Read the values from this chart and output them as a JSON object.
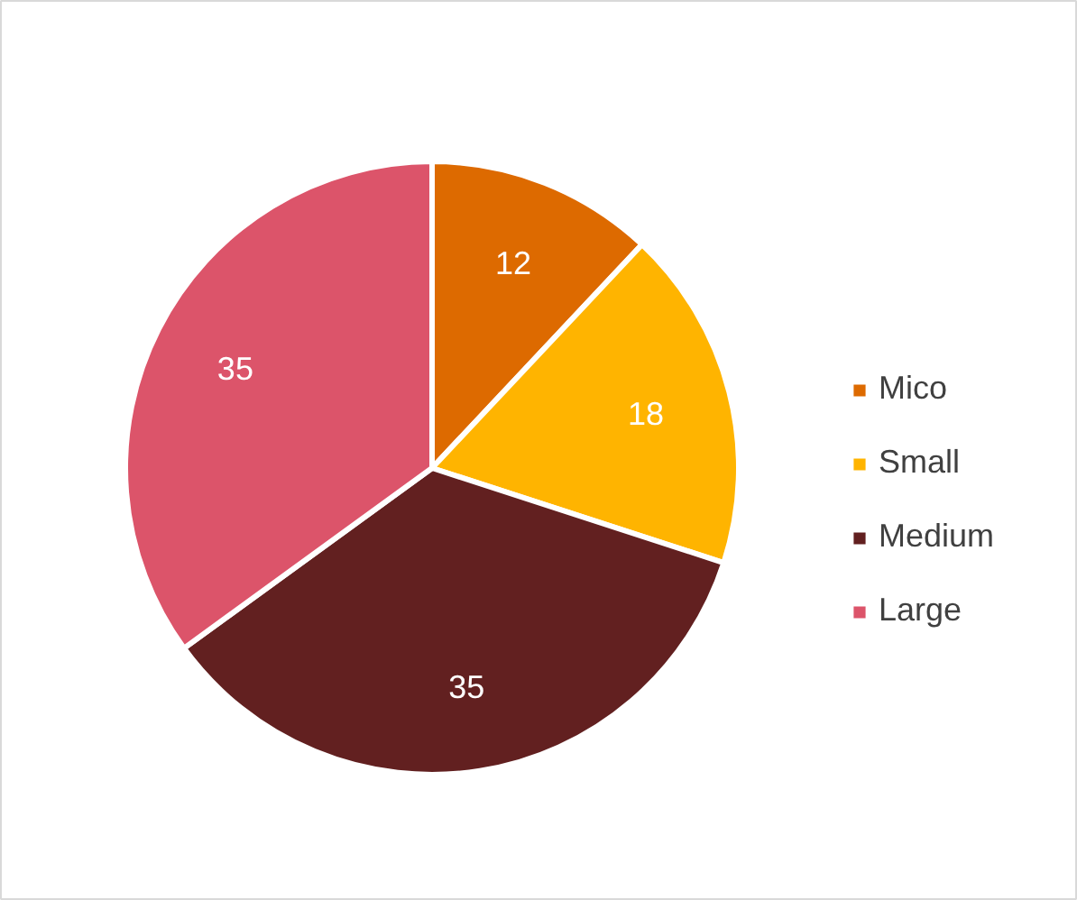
{
  "chart_data": {
    "type": "pie",
    "categories": [
      "Mico",
      "Small",
      "Medium",
      "Large"
    ],
    "values": [
      12,
      18,
      35,
      35
    ],
    "colors": [
      "#dd6a00",
      "#ffb400",
      "#622020",
      "#dc546a"
    ],
    "data_labels": true,
    "legend": "right"
  }
}
